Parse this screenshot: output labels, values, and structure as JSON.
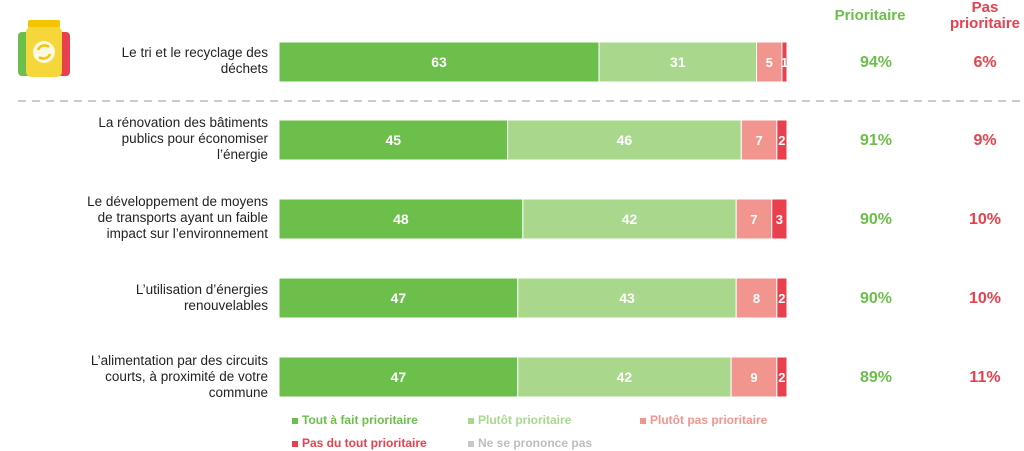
{
  "colors": {
    "tout_a_fait": "#6cbf4a",
    "plutot": "#a9d88c",
    "plutot_pas": "#f2958e",
    "pas_du_tout": "#e8414d",
    "nsp": "#c8c8c8",
    "separator": "#cccccc"
  },
  "headers": {
    "prioritaire": "Prioritaire",
    "pas_prioritaire_line1": "Pas",
    "pas_prioritaire_line2": "prioritaire"
  },
  "icon": "recycling-bins-icon",
  "chart_data": {
    "type": "bar",
    "orientation": "horizontal",
    "stacked": true,
    "categories": [
      [
        "Le tri et le recyclage des",
        "déchets"
      ],
      [
        "La rénovation des bâtiments",
        "publics pour économiser",
        "l’énergie"
      ],
      [
        "Le développement de moyens",
        "de transports ayant un faible",
        "impact sur l’environnement"
      ],
      [
        "L’utilisation d’énergies",
        "renouvelables"
      ],
      [
        "L’alimentation par des circuits",
        "courts, à proximité de votre",
        "commune"
      ]
    ],
    "series": [
      {
        "name": "Tout à fait prioritaire",
        "values": [
          63,
          45,
          48,
          47,
          47
        ]
      },
      {
        "name": "Plutôt prioritaire",
        "values": [
          31,
          46,
          42,
          43,
          42
        ]
      },
      {
        "name": "Plutôt pas prioritaire",
        "values": [
          5,
          7,
          7,
          8,
          9
        ]
      },
      {
        "name": "Pas du tout prioritaire",
        "values": [
          1,
          2,
          3,
          2,
          2
        ]
      },
      {
        "name": "Ne se prononce pas",
        "values": [
          0,
          0,
          0,
          0,
          0
        ]
      }
    ],
    "totals_prioritaire": [
      "94%",
      "91%",
      "90%",
      "90%",
      "89%"
    ],
    "totals_pas_prioritaire": [
      "6%",
      "9%",
      "10%",
      "10%",
      "11%"
    ],
    "xlim": [
      0,
      100
    ],
    "separator_after_first_row": true,
    "legend_position": "bottom"
  }
}
